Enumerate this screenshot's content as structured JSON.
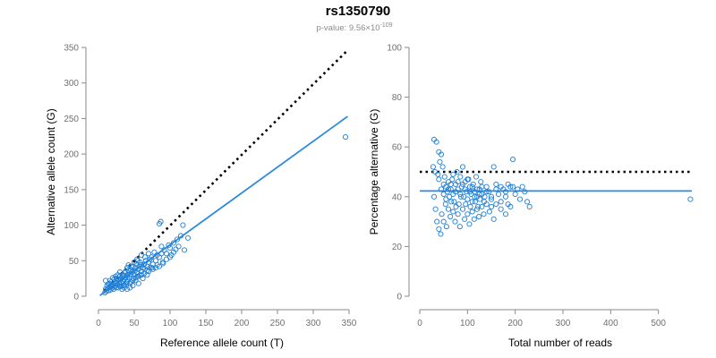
{
  "header": {
    "title": "rs1350790",
    "pvalue_prefix": "p-value: 9.56×10",
    "pvalue_exponent": "-109"
  },
  "colors": {
    "points": "#1f7fd6",
    "fit_line": "#2a8ae0",
    "reference_line": "#000000",
    "axis": "#8a8a8a"
  },
  "chart_data": [
    {
      "type": "scatter",
      "title": "",
      "xlabel": "Reference allele count (T)",
      "ylabel": "Alternative allele count (G)",
      "xlim": [
        0,
        350
      ],
      "ylim": [
        0,
        350
      ],
      "xticks": [
        0,
        50,
        100,
        150,
        200,
        250,
        300,
        350
      ],
      "yticks": [
        0,
        50,
        100,
        150,
        200,
        250,
        300,
        350
      ],
      "grid": false,
      "lines": [
        {
          "kind": "fit",
          "style": "solid",
          "color": "#2a8ae0",
          "x": [
            2,
            348
          ],
          "y": [
            1,
            253
          ]
        },
        {
          "kind": "reference",
          "style": "dotted",
          "color": "#000000",
          "x": [
            8,
            348
          ],
          "y": [
            8,
            346
          ]
        }
      ],
      "points": [
        [
          345,
          224
        ],
        [
          125,
          82
        ],
        [
          118,
          100
        ],
        [
          87,
          105
        ],
        [
          85,
          102
        ],
        [
          115,
          85
        ],
        [
          110,
          80
        ],
        [
          105,
          75
        ],
        [
          100,
          68
        ],
        [
          98,
          72
        ],
        [
          95,
          60
        ],
        [
          92,
          65
        ],
        [
          90,
          48
        ],
        [
          88,
          60
        ],
        [
          85,
          55
        ],
        [
          82,
          58
        ],
        [
          80,
          50
        ],
        [
          78,
          62
        ],
        [
          76,
          45
        ],
        [
          75,
          40
        ],
        [
          74,
          55
        ],
        [
          72,
          52
        ],
        [
          70,
          48
        ],
        [
          70,
          35
        ],
        [
          68,
          42
        ],
        [
          66,
          50
        ],
        [
          65,
          38
        ],
        [
          64,
          45
        ],
        [
          62,
          40
        ],
        [
          60,
          44
        ],
        [
          60,
          35
        ],
        [
          58,
          30
        ],
        [
          57,
          42
        ],
        [
          56,
          38
        ],
        [
          55,
          50
        ],
        [
          55,
          28
        ],
        [
          54,
          33
        ],
        [
          53,
          45
        ],
        [
          52,
          40
        ],
        [
          52,
          22
        ],
        [
          51,
          36
        ],
        [
          50,
          30
        ],
        [
          50,
          48
        ],
        [
          49,
          25
        ],
        [
          48,
          41
        ],
        [
          47,
          34
        ],
        [
          46,
          28
        ],
        [
          45,
          38
        ],
        [
          45,
          20
        ],
        [
          44,
          31
        ],
        [
          43,
          26
        ],
        [
          42,
          36
        ],
        [
          41,
          22
        ],
        [
          40,
          30
        ],
        [
          40,
          40
        ],
        [
          39,
          18
        ],
        [
          38,
          27
        ],
        [
          37,
          33
        ],
        [
          36,
          24
        ],
        [
          35,
          29
        ],
        [
          35,
          15
        ],
        [
          34,
          21
        ],
        [
          33,
          26
        ],
        [
          32,
          19
        ],
        [
          31,
          23
        ],
        [
          30,
          28
        ],
        [
          30,
          14
        ],
        [
          29,
          20
        ],
        [
          28,
          24
        ],
        [
          27,
          16
        ],
        [
          26,
          21
        ],
        [
          25,
          12
        ],
        [
          25,
          25
        ],
        [
          24,
          18
        ],
        [
          23,
          14
        ],
        [
          22,
          20
        ],
        [
          21,
          10
        ],
        [
          20,
          16
        ],
        [
          19,
          12
        ],
        [
          18,
          20
        ],
        [
          17,
          9
        ],
        [
          16,
          13
        ],
        [
          15,
          18
        ],
        [
          14,
          8
        ],
        [
          13,
          11
        ],
        [
          12,
          15
        ],
        [
          11,
          7
        ],
        [
          10,
          10
        ],
        [
          10,
          22
        ],
        [
          9,
          5
        ],
        [
          60,
          58
        ],
        [
          65,
          55
        ],
        [
          70,
          60
        ],
        [
          62,
          25
        ],
        [
          56,
          18
        ],
        [
          48,
          15
        ],
        [
          44,
          12
        ],
        [
          40,
          10
        ],
        [
          36,
          12
        ],
        [
          33,
          10
        ],
        [
          80,
          40
        ],
        [
          85,
          42
        ],
        [
          95,
          52
        ],
        [
          100,
          55
        ],
        [
          105,
          62
        ],
        [
          108,
          66
        ],
        [
          112,
          70
        ],
        [
          102,
          58
        ],
        [
          120,
          65
        ],
        [
          88,
          70
        ],
        [
          72,
          40
        ],
        [
          68,
          30
        ],
        [
          58,
          48
        ],
        [
          54,
          52
        ],
        [
          46,
          42
        ],
        [
          42,
          44
        ],
        [
          38,
          35
        ],
        [
          34,
          30
        ],
        [
          30,
          34
        ],
        [
          27,
          30
        ],
        [
          24,
          28
        ],
        [
          22,
          24
        ],
        [
          20,
          26
        ],
        [
          18,
          14
        ],
        [
          16,
          22
        ],
        [
          14,
          17
        ],
        [
          28,
          12
        ],
        [
          32,
          14
        ],
        [
          36,
          16
        ],
        [
          40,
          20
        ],
        [
          44,
          18
        ],
        [
          48,
          22
        ],
        [
          52,
          26
        ],
        [
          56,
          28
        ],
        [
          60,
          30
        ],
        [
          64,
          32
        ],
        [
          68,
          36
        ],
        [
          76,
          38
        ],
        [
          82,
          44
        ],
        [
          90,
          46
        ]
      ]
    },
    {
      "type": "scatter",
      "title": "",
      "xlabel": "Total number of reads",
      "ylabel": "Percentage alternative (G)",
      "xlim": [
        0,
        570
      ],
      "ylim": [
        0,
        100
      ],
      "xticks": [
        0,
        100,
        200,
        300,
        400,
        500
      ],
      "yticks": [
        0,
        20,
        40,
        60,
        80,
        100
      ],
      "grid": false,
      "lines": [
        {
          "kind": "fit",
          "style": "solid",
          "color": "#2a8ae0",
          "x": [
            0,
            570
          ],
          "y": [
            42.3,
            42.3
          ]
        },
        {
          "kind": "reference",
          "style": "dotted",
          "color": "#000000",
          "x": [
            0,
            570
          ],
          "y": [
            50,
            50
          ]
        }
      ],
      "points": [
        [
          567,
          39
        ],
        [
          30,
          63
        ],
        [
          35,
          62
        ],
        [
          40,
          58
        ],
        [
          45,
          57
        ],
        [
          28,
          52
        ],
        [
          32,
          50
        ],
        [
          38,
          49
        ],
        [
          42,
          54
        ],
        [
          48,
          52
        ],
        [
          50,
          45
        ],
        [
          52,
          48
        ],
        [
          55,
          44
        ],
        [
          58,
          42
        ],
        [
          60,
          46
        ],
        [
          62,
          40
        ],
        [
          65,
          43
        ],
        [
          68,
          47
        ],
        [
          70,
          41
        ],
        [
          72,
          38
        ],
        [
          75,
          45
        ],
        [
          78,
          50
        ],
        [
          80,
          43
        ],
        [
          82,
          37
        ],
        [
          85,
          48
        ],
        [
          88,
          44
        ],
        [
          90,
          52
        ],
        [
          92,
          40
        ],
        [
          95,
          46
        ],
        [
          98,
          42
        ],
        [
          100,
          39
        ],
        [
          102,
          47
        ],
        [
          105,
          44
        ],
        [
          108,
          41
        ],
        [
          110,
          38
        ],
        [
          112,
          45
        ],
        [
          115,
          42
        ],
        [
          118,
          48
        ],
        [
          120,
          40
        ],
        [
          122,
          36
        ],
        [
          125,
          43
        ],
        [
          128,
          46
        ],
        [
          130,
          41
        ],
        [
          135,
          38
        ],
        [
          140,
          44
        ],
        [
          145,
          42
        ],
        [
          150,
          39
        ],
        [
          155,
          52
        ],
        [
          160,
          45
        ],
        [
          165,
          41
        ],
        [
          170,
          38
        ],
        [
          175,
          43
        ],
        [
          180,
          40
        ],
        [
          185,
          37
        ],
        [
          190,
          44
        ],
        [
          195,
          55
        ],
        [
          200,
          41
        ],
        [
          205,
          43
        ],
        [
          210,
          39
        ],
        [
          215,
          44
        ],
        [
          220,
          42
        ],
        [
          225,
          38
        ],
        [
          230,
          36
        ],
        [
          30,
          40
        ],
        [
          33,
          35
        ],
        [
          36,
          30
        ],
        [
          40,
          27
        ],
        [
          44,
          25
        ],
        [
          46,
          33
        ],
        [
          50,
          30
        ],
        [
          54,
          37
        ],
        [
          56,
          28
        ],
        [
          60,
          35
        ],
        [
          64,
          32
        ],
        [
          66,
          38
        ],
        [
          70,
          34
        ],
        [
          74,
          30
        ],
        [
          76,
          36
        ],
        [
          80,
          33
        ],
        [
          84,
          28
        ],
        [
          86,
          40
        ],
        [
          90,
          35
        ],
        [
          94,
          31
        ],
        [
          96,
          37
        ],
        [
          100,
          33
        ],
        [
          104,
          29
        ],
        [
          106,
          36
        ],
        [
          110,
          34
        ],
        [
          114,
          31
        ],
        [
          116,
          38
        ],
        [
          120,
          35
        ],
        [
          124,
          32
        ],
        [
          126,
          39
        ],
        [
          130,
          36
        ],
        [
          134,
          33
        ],
        [
          136,
          40
        ],
        [
          140,
          37
        ],
        [
          146,
          34
        ],
        [
          150,
          36
        ],
        [
          155,
          31
        ],
        [
          160,
          37
        ],
        [
          170,
          35
        ],
        [
          180,
          33
        ],
        [
          190,
          36
        ],
        [
          40,
          47
        ],
        [
          45,
          43
        ],
        [
          50,
          41
        ],
        [
          55,
          39
        ],
        [
          60,
          43
        ],
        [
          65,
          45
        ],
        [
          70,
          49
        ],
        [
          75,
          42
        ],
        [
          80,
          46
        ],
        [
          85,
          41
        ],
        [
          90,
          45
        ],
        [
          95,
          43
        ],
        [
          100,
          47
        ],
        [
          105,
          42
        ],
        [
          110,
          44
        ],
        [
          115,
          40
        ],
        [
          120,
          43
        ],
        [
          125,
          41
        ],
        [
          130,
          44
        ],
        [
          140,
          42
        ],
        [
          150,
          40
        ],
        [
          160,
          43
        ],
        [
          170,
          44
        ],
        [
          180,
          42
        ],
        [
          185,
          45
        ],
        [
          195,
          44
        ]
      ]
    }
  ]
}
